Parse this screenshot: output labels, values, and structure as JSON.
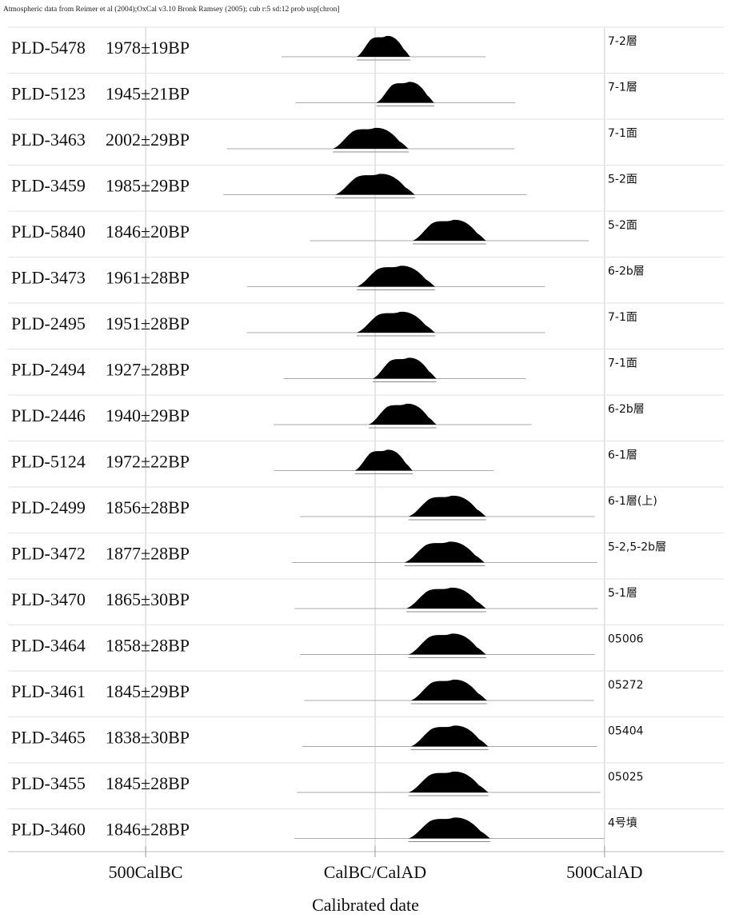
{
  "chart_data": {
    "type": "multiplot",
    "title": "Atmospheric data from Reimer et al (2004);OxCal v3.10 Bronk Ramsey (2005); cub r:5 sd:12 prob usp[chron]",
    "xlabel": "Calibrated date",
    "xlim": [
      -800,
      760
    ],
    "xticks": [
      {
        "value": -500,
        "label": "500CalBC"
      },
      {
        "value": 0,
        "label": "CalBC/CalAD"
      },
      {
        "value": 500,
        "label": "500CalAD"
      }
    ],
    "color": "#000000",
    "rows": [
      {
        "lab": "PLD-5478",
        "age": "1978±19BP",
        "layer": "7-2層",
        "range": [
          -40,
          77
        ]
      },
      {
        "lab": "PLD-5123",
        "age": "1945±21BP",
        "layer": "7-1層",
        "range": [
          3,
          129
        ]
      },
      {
        "lab": "PLD-3463",
        "age": "2002±29BP",
        "layer": "7-1面",
        "range": [
          -92,
          73
        ]
      },
      {
        "lab": "PLD-3459",
        "age": "1985±29BP",
        "layer": "5-2面",
        "range": [
          -87,
          87
        ]
      },
      {
        "lab": "PLD-5840",
        "age": "1846±20BP",
        "layer": "5-2面",
        "range": [
          82,
          242
        ]
      },
      {
        "lab": "PLD-3473",
        "age": "1961±28BP",
        "layer": "6-2b層",
        "range": [
          -40,
          131
        ]
      },
      {
        "lab": "PLD-2495",
        "age": "1951±28BP",
        "layer": "7-1面",
        "range": [
          -40,
          131
        ]
      },
      {
        "lab": "PLD-2494",
        "age": "1927±28BP",
        "layer": "7-1面",
        "range": [
          -5,
          134
        ]
      },
      {
        "lab": "PLD-2446",
        "age": "1940±29BP",
        "layer": "6-2b層",
        "range": [
          -14,
          134
        ]
      },
      {
        "lab": "PLD-5124",
        "age": "1972±22BP",
        "layer": "6-1層",
        "range": [
          -44,
          82
        ]
      },
      {
        "lab": "PLD-2499",
        "age": "1856±28BP",
        "layer": "6-1層(上)",
        "range": [
          73,
          242
        ]
      },
      {
        "lab": "PLD-3472",
        "age": "1877±28BP",
        "layer": "5-2,5-2b層",
        "range": [
          64,
          239
        ]
      },
      {
        "lab": "PLD-3470",
        "age": "1865±30BP",
        "layer": "5-1層",
        "range": [
          68,
          242
        ]
      },
      {
        "lab": "PLD-3464",
        "age": "1858±28BP",
        "layer": "05006",
        "range": [
          73,
          242
        ]
      },
      {
        "lab": "PLD-3461",
        "age": "1845±29BP",
        "layer": "05272",
        "range": [
          78,
          244
        ]
      },
      {
        "lab": "PLD-3465",
        "age": "1838±30BP",
        "layer": "05404",
        "range": [
          78,
          247
        ]
      },
      {
        "lab": "PLD-3455",
        "age": "1845±28BP",
        "layer": "05025",
        "range": [
          73,
          247
        ]
      },
      {
        "lab": "PLD-3460",
        "age": "1846±28BP",
        "layer": "4号墳",
        "range": [
          73,
          251
        ]
      }
    ]
  }
}
